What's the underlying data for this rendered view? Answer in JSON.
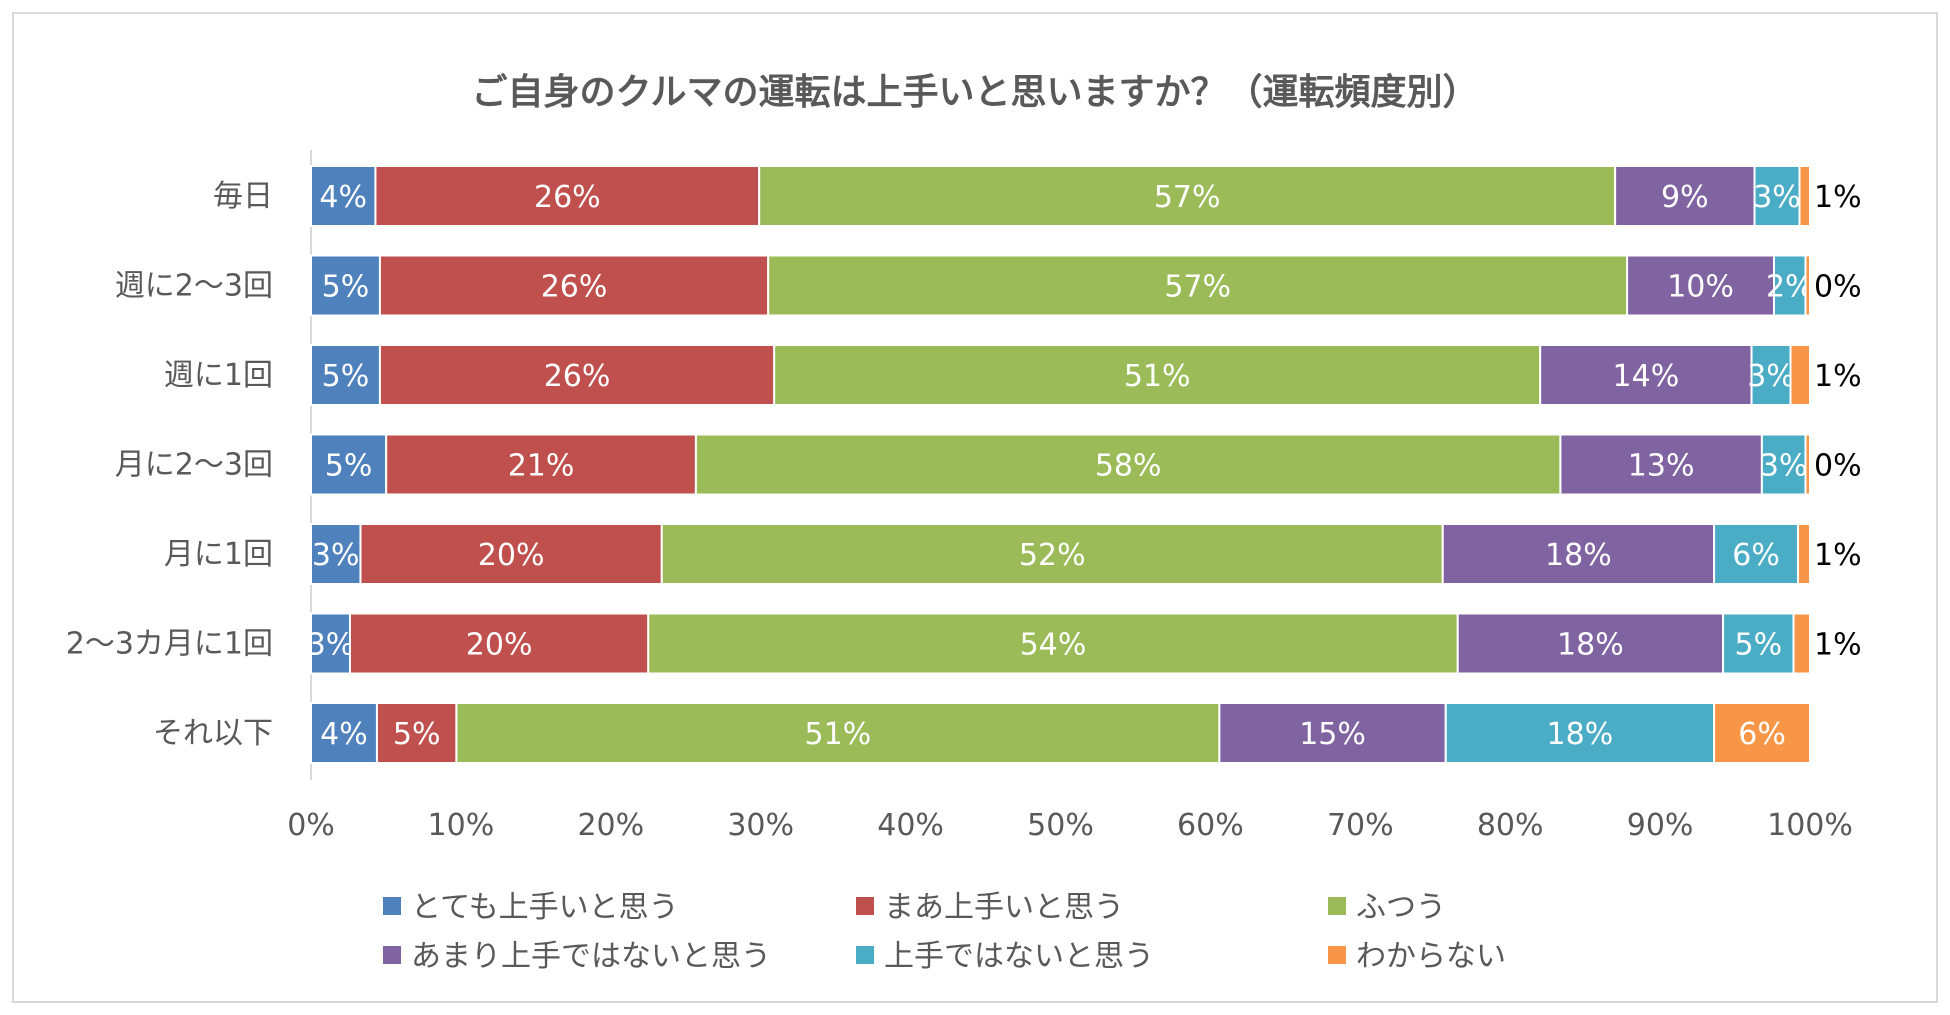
{
  "chart_data": {
    "type": "bar",
    "orientation": "horizontal",
    "stacked": "percent",
    "title": "ご自身のクルマの運転は上手いと思いますか？（運転頻度別）",
    "categories": [
      "毎日",
      "週に2〜3回",
      "週に1回",
      "月に2〜3回",
      "月に1回",
      "2〜3カ月に1回",
      "それ以下"
    ],
    "series": [
      {
        "name": "とても上手いと思う",
        "color": "#4f81bd",
        "values": [
          4.3,
          4.6,
          4.6,
          5.0,
          3.3,
          2.6,
          4.4
        ],
        "labels": [
          "4%",
          "5%",
          "5%",
          "5%",
          "3%",
          "3%",
          "4%"
        ]
      },
      {
        "name": "まあ上手いと思う",
        "color": "#c0504d",
        "values": [
          25.6,
          25.9,
          26.3,
          20.6,
          20.1,
          19.9,
          5.3
        ],
        "labels": [
          "26%",
          "26%",
          "26%",
          "21%",
          "20%",
          "20%",
          "5%"
        ]
      },
      {
        "name": "ふつう",
        "color": "#9bbb59",
        "values": [
          57.1,
          57.3,
          51.1,
          57.5,
          52.1,
          54.0,
          50.9
        ],
        "labels": [
          "57%",
          "57%",
          "51%",
          "58%",
          "52%",
          "54%",
          "51%"
        ]
      },
      {
        "name": "あまり上手ではないと思う",
        "color": "#8064a2",
        "values": [
          9.3,
          9.8,
          14.1,
          13.4,
          18.1,
          17.7,
          15.1
        ],
        "labels": [
          "9%",
          "10%",
          "14%",
          "13%",
          "18%",
          "18%",
          "15%"
        ]
      },
      {
        "name": "上手ではないと思う",
        "color": "#4bacc6",
        "values": [
          3.0,
          2.1,
          2.6,
          2.9,
          5.6,
          4.7,
          17.9
        ],
        "labels": [
          "3%",
          "2%",
          "3%",
          "3%",
          "6%",
          "5%",
          "18%"
        ]
      },
      {
        "name": "わからない",
        "color": "#f79646",
        "values": [
          0.7,
          0.3,
          1.3,
          0.3,
          0.8,
          1.1,
          6.4
        ],
        "labels": [
          "1%",
          "0%",
          "1%",
          "0%",
          "1%",
          "1%",
          "6%"
        ]
      }
    ],
    "x_ticks": [
      "0%",
      "10%",
      "20%",
      "30%",
      "40%",
      "50%",
      "60%",
      "70%",
      "80%",
      "90%",
      "100%"
    ],
    "xlim": [
      0,
      100
    ],
    "legend_position": "bottom"
  }
}
